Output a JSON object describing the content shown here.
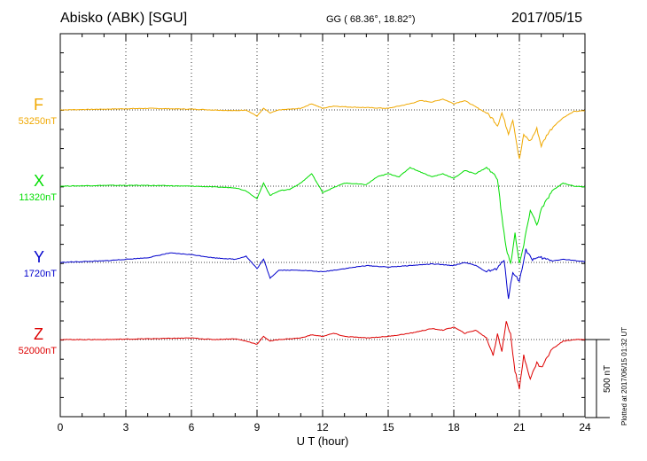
{
  "header": {
    "station": "Abisko (ABK)  [SGU]",
    "coords": "GG ( 68.36°,  18.82°)",
    "date": "2017/05/15"
  },
  "plotted_note": "Plotted at 2017/06/15 01:32 UT",
  "colors": {
    "F": "#f0a800",
    "X": "#00dd00",
    "Y": "#0000cc",
    "Z": "#dd0000"
  },
  "chart_data": {
    "type": "line",
    "xlabel": "U T (hour)",
    "xlim": [
      0,
      24
    ],
    "x_ticks": [
      "0",
      "3",
      "6",
      "9",
      "12",
      "15",
      "18",
      "21",
      "24"
    ],
    "grid": true,
    "scale_bar": {
      "label": "500 nT",
      "nT": 500
    },
    "series": [
      {
        "name": "F",
        "baseline_label": "53250nT",
        "x": [
          0,
          2,
          4,
          6,
          7,
          8,
          8.5,
          9,
          9.3,
          9.6,
          10,
          11,
          11.5,
          12,
          12.5,
          13,
          14,
          15,
          16,
          16.5,
          17,
          17.5,
          18,
          18.5,
          19,
          19.5,
          19.8,
          20,
          20.2,
          20.5,
          20.7,
          21,
          21.2,
          21.5,
          21.8,
          22,
          22.3,
          22.6,
          23,
          23.5,
          24
        ],
        "values": [
          0,
          5,
          10,
          5,
          0,
          -5,
          0,
          -40,
          10,
          -20,
          0,
          10,
          40,
          10,
          25,
          20,
          15,
          10,
          40,
          60,
          50,
          70,
          40,
          60,
          20,
          -20,
          -60,
          -100,
          -20,
          -150,
          -60,
          -320,
          -160,
          -200,
          -120,
          -230,
          -150,
          -100,
          -50,
          -10,
          -5
        ]
      },
      {
        "name": "X",
        "baseline_label": "11320nT",
        "x": [
          0,
          2,
          4,
          6,
          7,
          8,
          8.5,
          9,
          9.3,
          9.6,
          10,
          10.5,
          11,
          11.5,
          12,
          13,
          14,
          14.5,
          15,
          15.5,
          16,
          17,
          17.5,
          18,
          18.5,
          19,
          19.5,
          19.8,
          20,
          20.2,
          20.4,
          20.6,
          20.8,
          21,
          21.2,
          21.5,
          21.8,
          22,
          22.5,
          23,
          23.5,
          24
        ],
        "values": [
          0,
          5,
          5,
          0,
          -5,
          -10,
          -30,
          -80,
          20,
          -60,
          -30,
          -20,
          20,
          80,
          -40,
          20,
          10,
          60,
          80,
          60,
          120,
          60,
          80,
          50,
          100,
          80,
          120,
          80,
          50,
          -200,
          -400,
          -500,
          -300,
          -500,
          -380,
          -150,
          -250,
          -150,
          -30,
          20,
          0,
          -5
        ]
      },
      {
        "name": "Y",
        "baseline_label": "1720nT",
        "x": [
          0,
          2,
          4,
          5,
          6,
          7,
          8,
          8.5,
          9,
          9.3,
          9.6,
          10,
          11,
          12,
          13,
          14,
          15,
          16,
          17,
          18,
          18.5,
          19,
          19.5,
          20,
          20.3,
          20.5,
          20.7,
          21,
          21.3,
          21.6,
          22,
          22.5,
          23,
          24
        ],
        "values": [
          0,
          10,
          30,
          60,
          50,
          30,
          20,
          40,
          -40,
          20,
          -100,
          -50,
          -50,
          -60,
          -40,
          -20,
          -30,
          -20,
          -10,
          -20,
          0,
          -20,
          -60,
          -40,
          20,
          -230,
          -60,
          -120,
          80,
          20,
          30,
          10,
          20,
          5
        ]
      },
      {
        "name": "Z",
        "baseline_label": "52000nT",
        "x": [
          0,
          2,
          4,
          6,
          7,
          8,
          8.5,
          9,
          9.3,
          9.6,
          10,
          11,
          11.5,
          12,
          12.5,
          13,
          14,
          15,
          16,
          17,
          17.5,
          18,
          18.5,
          19,
          19.5,
          19.8,
          20,
          20.2,
          20.4,
          20.6,
          20.8,
          21,
          21.2,
          21.5,
          21.8,
          22,
          22.5,
          23,
          23.5,
          24
        ],
        "values": [
          0,
          0,
          5,
          10,
          0,
          5,
          -10,
          -30,
          20,
          -10,
          0,
          10,
          30,
          20,
          40,
          20,
          10,
          20,
          40,
          70,
          60,
          80,
          40,
          60,
          10,
          -100,
          40,
          -80,
          120,
          30,
          -200,
          -320,
          -100,
          -250,
          -150,
          -180,
          -60,
          -10,
          0,
          0
        ]
      }
    ]
  }
}
